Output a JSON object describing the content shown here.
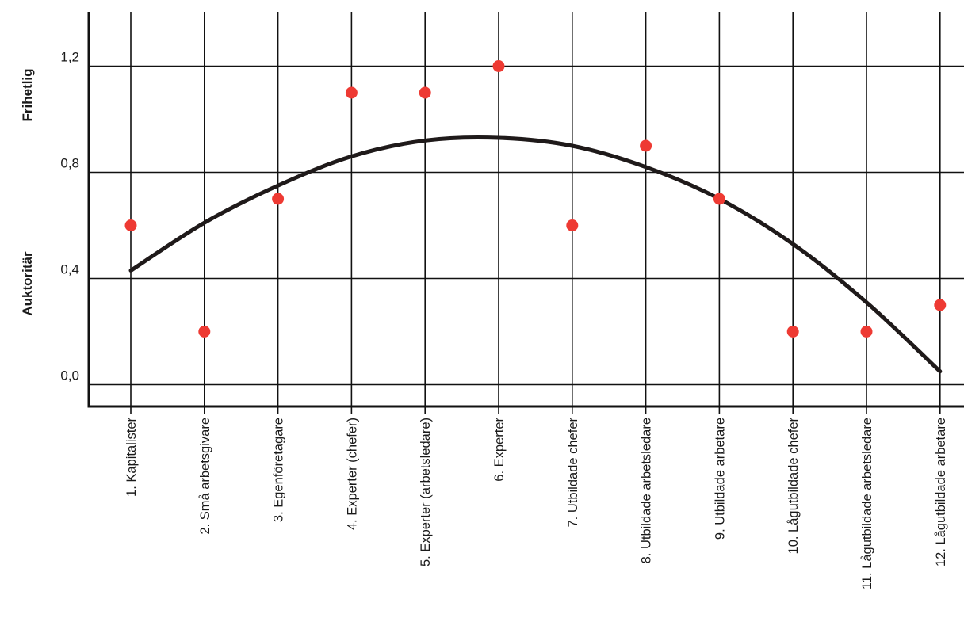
{
  "chart_data": {
    "type": "scatter",
    "categories": [
      "1. Kapitalister",
      "2. Små arbetsgivare",
      "3. Egenföretagare",
      "4. Experter (chefer)",
      "5. Experter (arbetsledare)",
      "6. Experter",
      "7. Utbildade chefer",
      "8. Utbildade arbetsledare",
      "9. Utbildade arbetare",
      "10. Lågutbildade chefer",
      "11. Lågutbildade arbetsledare",
      "12. Lågutbildade arbetare"
    ],
    "values": [
      0.6,
      0.2,
      0.7,
      1.1,
      1.1,
      1.2,
      0.6,
      0.9,
      0.7,
      0.2,
      0.2,
      0.3
    ],
    "trend": {
      "type": "quadratic",
      "x": [
        1,
        2,
        3,
        4,
        5,
        6,
        7,
        8,
        9,
        10,
        11,
        12
      ],
      "values": [
        0.43,
        0.61,
        0.75,
        0.86,
        0.92,
        0.93,
        0.9,
        0.82,
        0.7,
        0.53,
        0.31,
        0.05
      ]
    },
    "ylim": [
      -0.1,
      1.4
    ],
    "yticks": [
      {
        "value": 0.0,
        "label": "0,0"
      },
      {
        "value": 0.4,
        "label": "0,4"
      },
      {
        "value": 0.8,
        "label": "0,8"
      },
      {
        "value": 1.2,
        "label": "1,2"
      }
    ],
    "ylabel_high": "Frihetlig",
    "ylabel_low": "Auktoritär",
    "grid": true,
    "colors": {
      "points": "#ee3a33",
      "trend": "#1f1a1a",
      "grid": "#111111"
    }
  }
}
